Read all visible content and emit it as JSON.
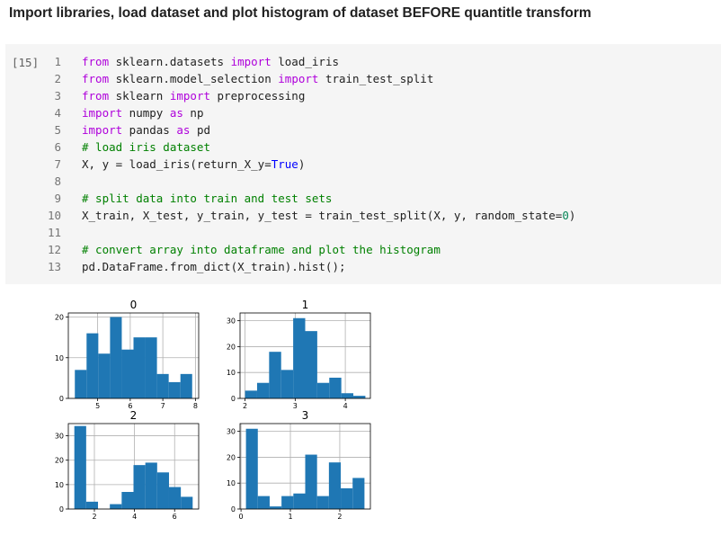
{
  "heading": "Import libraries, load dataset and plot histogram of dataset BEFORE quantitle transform",
  "cell": {
    "prompt": "[15]",
    "lines": [
      {
        "n": "1",
        "tokens": [
          {
            "t": "from",
            "c": "kw"
          },
          {
            "t": " sklearn.datasets ",
            "c": ""
          },
          {
            "t": "import",
            "c": "kw"
          },
          {
            "t": " load_iris",
            "c": ""
          }
        ]
      },
      {
        "n": "2",
        "tokens": [
          {
            "t": "from",
            "c": "kw"
          },
          {
            "t": " sklearn.model_selection ",
            "c": ""
          },
          {
            "t": "import",
            "c": "kw"
          },
          {
            "t": " train_test_split",
            "c": ""
          }
        ]
      },
      {
        "n": "3",
        "tokens": [
          {
            "t": "from",
            "c": "kw"
          },
          {
            "t": " sklearn ",
            "c": ""
          },
          {
            "t": "import",
            "c": "kw"
          },
          {
            "t": " preprocessing",
            "c": ""
          }
        ]
      },
      {
        "n": "4",
        "tokens": [
          {
            "t": "import",
            "c": "kw"
          },
          {
            "t": " numpy ",
            "c": ""
          },
          {
            "t": "as",
            "c": "kw"
          },
          {
            "t": " np",
            "c": ""
          }
        ]
      },
      {
        "n": "5",
        "tokens": [
          {
            "t": "import",
            "c": "kw"
          },
          {
            "t": " pandas ",
            "c": ""
          },
          {
            "t": "as",
            "c": "kw"
          },
          {
            "t": " pd",
            "c": ""
          }
        ]
      },
      {
        "n": "6",
        "tokens": [
          {
            "t": "# load iris dataset",
            "c": "cm"
          }
        ]
      },
      {
        "n": "7",
        "tokens": [
          {
            "t": "X, y = load_iris(return_X_y=",
            "c": ""
          },
          {
            "t": "True",
            "c": "bi"
          },
          {
            "t": ")",
            "c": ""
          }
        ]
      },
      {
        "n": "8",
        "tokens": []
      },
      {
        "n": "9",
        "tokens": [
          {
            "t": "# split data into train and test sets",
            "c": "cm"
          }
        ]
      },
      {
        "n": "10",
        "tokens": [
          {
            "t": "X_train, X_test, y_train, y_test = train_test_split(X, y, random_state=",
            "c": ""
          },
          {
            "t": "0",
            "c": "nm"
          },
          {
            "t": ")",
            "c": ""
          }
        ]
      },
      {
        "n": "11",
        "tokens": []
      },
      {
        "n": "12",
        "tokens": [
          {
            "t": "# convert array into dataframe and plot the histogram",
            "c": "cm"
          }
        ]
      },
      {
        "n": "13",
        "tokens": [
          {
            "t": "pd.DataFrame.from_dict(X_train).hist();",
            "c": ""
          }
        ]
      }
    ]
  },
  "colors": {
    "bar": "#1f77b4",
    "grid": "#b0b0b0"
  },
  "chart_data": [
    {
      "type": "bar",
      "title": "0",
      "xlim": [
        4.1,
        8.1
      ],
      "ylim": [
        0,
        21
      ],
      "xticks": [
        5,
        6,
        7,
        8
      ],
      "yticks": [
        0,
        10,
        20
      ],
      "bin_edges": [
        4.3,
        4.66,
        5.02,
        5.38,
        5.74,
        6.1,
        6.46,
        6.82,
        7.18,
        7.54,
        7.9
      ],
      "values": [
        7,
        16,
        11,
        20,
        12,
        15,
        15,
        6,
        4,
        6
      ]
    },
    {
      "type": "bar",
      "title": "1",
      "xlim": [
        1.9,
        4.5
      ],
      "ylim": [
        0,
        33
      ],
      "xticks": [
        2,
        3,
        4
      ],
      "yticks": [
        0,
        10,
        20,
        30
      ],
      "bin_edges": [
        2.0,
        2.24,
        2.48,
        2.72,
        2.96,
        3.2,
        3.44,
        3.68,
        3.92,
        4.16,
        4.4
      ],
      "values": [
        3,
        6,
        18,
        11,
        31,
        26,
        6,
        8,
        2,
        1
      ]
    },
    {
      "type": "bar",
      "title": "2",
      "xlim": [
        0.7,
        7.2
      ],
      "ylim": [
        0,
        35
      ],
      "xticks": [
        2,
        4,
        6
      ],
      "yticks": [
        0,
        10,
        20,
        30
      ],
      "bin_edges": [
        1.0,
        1.59,
        2.18,
        2.77,
        3.36,
        3.95,
        4.54,
        5.13,
        5.72,
        6.31,
        6.9
      ],
      "values": [
        34,
        3,
        0,
        2,
        7,
        18,
        19,
        15,
        9,
        5
      ]
    },
    {
      "type": "bar",
      "title": "3",
      "xlim": [
        -0.02,
        2.62
      ],
      "ylim": [
        0,
        33
      ],
      "xticks": [
        0,
        1,
        2
      ],
      "yticks": [
        0,
        10,
        20,
        30
      ],
      "bin_edges": [
        0.1,
        0.34,
        0.58,
        0.82,
        1.06,
        1.3,
        1.54,
        1.78,
        2.02,
        2.26,
        2.5
      ],
      "values": [
        31,
        5,
        1,
        5,
        6,
        21,
        5,
        18,
        8,
        12
      ]
    }
  ]
}
